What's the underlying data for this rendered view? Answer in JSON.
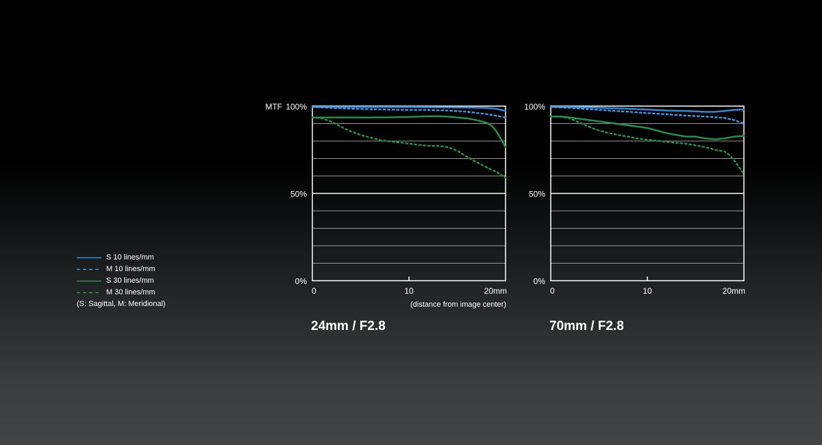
{
  "chart_data": [
    {
      "type": "line",
      "title": "24mm / F2.8",
      "ylabel": "MTF",
      "xlabel": "(distance from image center)",
      "xlim": [
        0,
        20
      ],
      "ylim": [
        0,
        100
      ],
      "x_ticks": [
        {
          "value": 0,
          "label": "0"
        },
        {
          "value": 10,
          "label": "10"
        },
        {
          "value": 20,
          "label": "20mm"
        }
      ],
      "y_ticks": [
        {
          "value": 0,
          "label": "0%"
        },
        {
          "value": 50,
          "label": "50%"
        },
        {
          "value": 100,
          "label": "100%"
        }
      ],
      "grid": true,
      "series": [
        {
          "name": "S  10 lines/mm",
          "color": "#2e8fe0",
          "style": "solid",
          "x": [
            0,
            2,
            4,
            6,
            8,
            10,
            12,
            14,
            16,
            18,
            19,
            20
          ],
          "y": [
            99.5,
            99.5,
            99.5,
            99.5,
            99.5,
            99.5,
            99.4,
            99.3,
            99.2,
            99.0,
            98.5,
            97.3
          ]
        },
        {
          "name": "M 10 lines/mm",
          "color": "#3a9cef",
          "style": "dash",
          "x": [
            0,
            2,
            4,
            6,
            8,
            10,
            12,
            14,
            16,
            18,
            19,
            20
          ],
          "y": [
            99.5,
            99.0,
            98.5,
            98.2,
            98.0,
            97.8,
            97.8,
            97.5,
            96.8,
            95.5,
            94.5,
            93.5
          ]
        },
        {
          "name": "S  30 lines/mm",
          "color": "#20994a",
          "style": "solid",
          "x": [
            0,
            2,
            4,
            6,
            8,
            10,
            12,
            13,
            14,
            16,
            17,
            18,
            18.5,
            19,
            19.5,
            20
          ],
          "y": [
            93.5,
            93.5,
            93.5,
            93.5,
            93.6,
            93.8,
            94.2,
            94.2,
            94.0,
            93.0,
            92.0,
            90.5,
            89.0,
            86.0,
            81.5,
            76.5
          ]
        },
        {
          "name": "M 30 lines/mm",
          "color": "#20994a",
          "style": "dash",
          "x": [
            0,
            1,
            2,
            3,
            4,
            5,
            6,
            7,
            8,
            9,
            10,
            11,
            12,
            13,
            14,
            15,
            16,
            17,
            18,
            19,
            20
          ],
          "y": [
            93.5,
            93.0,
            91.0,
            88.0,
            85.5,
            83.5,
            82.0,
            80.5,
            79.8,
            79.2,
            78.5,
            77.8,
            77.2,
            77.2,
            76.5,
            74.5,
            71.0,
            68.0,
            65.0,
            62.5,
            59.0
          ]
        }
      ]
    },
    {
      "type": "line",
      "title": "70mm / F2.8",
      "xlim": [
        0,
        20
      ],
      "ylim": [
        0,
        100
      ],
      "x_ticks": [
        {
          "value": 0,
          "label": "0"
        },
        {
          "value": 10,
          "label": "10"
        },
        {
          "value": 20,
          "label": "20mm"
        }
      ],
      "y_ticks": [
        {
          "value": 0,
          "label": "0%"
        },
        {
          "value": 50,
          "label": "50%"
        },
        {
          "value": 100,
          "label": "100%"
        }
      ],
      "grid": true,
      "series": [
        {
          "name": "S  10 lines/mm",
          "color": "#2e8fe0",
          "style": "solid",
          "x": [
            0,
            2,
            4,
            6,
            8,
            10,
            12,
            14,
            15,
            16,
            17,
            18,
            19,
            20
          ],
          "y": [
            99.5,
            99.5,
            99.2,
            98.9,
            98.5,
            98.0,
            97.5,
            97.2,
            97.0,
            96.7,
            96.7,
            97.2,
            97.8,
            98.0
          ]
        },
        {
          "name": "M 10 lines/mm",
          "color": "#3a9cef",
          "style": "dash",
          "x": [
            0,
            2,
            4,
            6,
            8,
            10,
            12,
            14,
            16,
            18,
            19,
            20
          ],
          "y": [
            99.5,
            99.0,
            98.2,
            97.5,
            96.8,
            96.0,
            95.3,
            94.6,
            94.0,
            93.2,
            92.0,
            90.0
          ]
        },
        {
          "name": "S  30 lines/mm",
          "color": "#20994a",
          "style": "solid",
          "x": [
            0,
            1,
            2,
            4,
            6,
            8,
            10,
            11,
            12,
            13,
            14,
            15,
            16,
            17,
            18,
            19,
            20
          ],
          "y": [
            94.0,
            94.0,
            93.5,
            92.0,
            90.5,
            89.0,
            87.5,
            86.0,
            84.5,
            83.5,
            82.5,
            82.5,
            81.5,
            81.0,
            81.5,
            82.5,
            83.0
          ]
        },
        {
          "name": "M 30 lines/mm",
          "color": "#20994a",
          "style": "dash",
          "x": [
            0,
            1,
            2,
            3,
            4,
            5,
            6,
            7,
            8,
            9,
            10,
            11,
            12,
            13,
            14,
            15,
            16,
            17,
            18,
            18.5,
            19,
            19.5,
            20
          ],
          "y": [
            94.0,
            94.0,
            93.0,
            90.5,
            88.0,
            86.0,
            84.5,
            83.5,
            82.5,
            81.5,
            80.8,
            80.2,
            79.5,
            79.0,
            78.5,
            77.5,
            76.5,
            75.0,
            74.0,
            72.0,
            69.0,
            65.0,
            61.0
          ]
        }
      ]
    }
  ],
  "legend": {
    "items": [
      {
        "label": "S  10 lines/mm",
        "color": "#2e8fe0",
        "style": "solid"
      },
      {
        "label": "M 10 lines/mm",
        "color": "#3a9cef",
        "style": "dash"
      },
      {
        "label": "S  30 lines/mm",
        "color": "#20994a",
        "style": "solid"
      },
      {
        "label": "M 30 lines/mm",
        "color": "#20994a",
        "style": "dash"
      }
    ],
    "note": "(S: Sagittal, M: Meridional)"
  }
}
